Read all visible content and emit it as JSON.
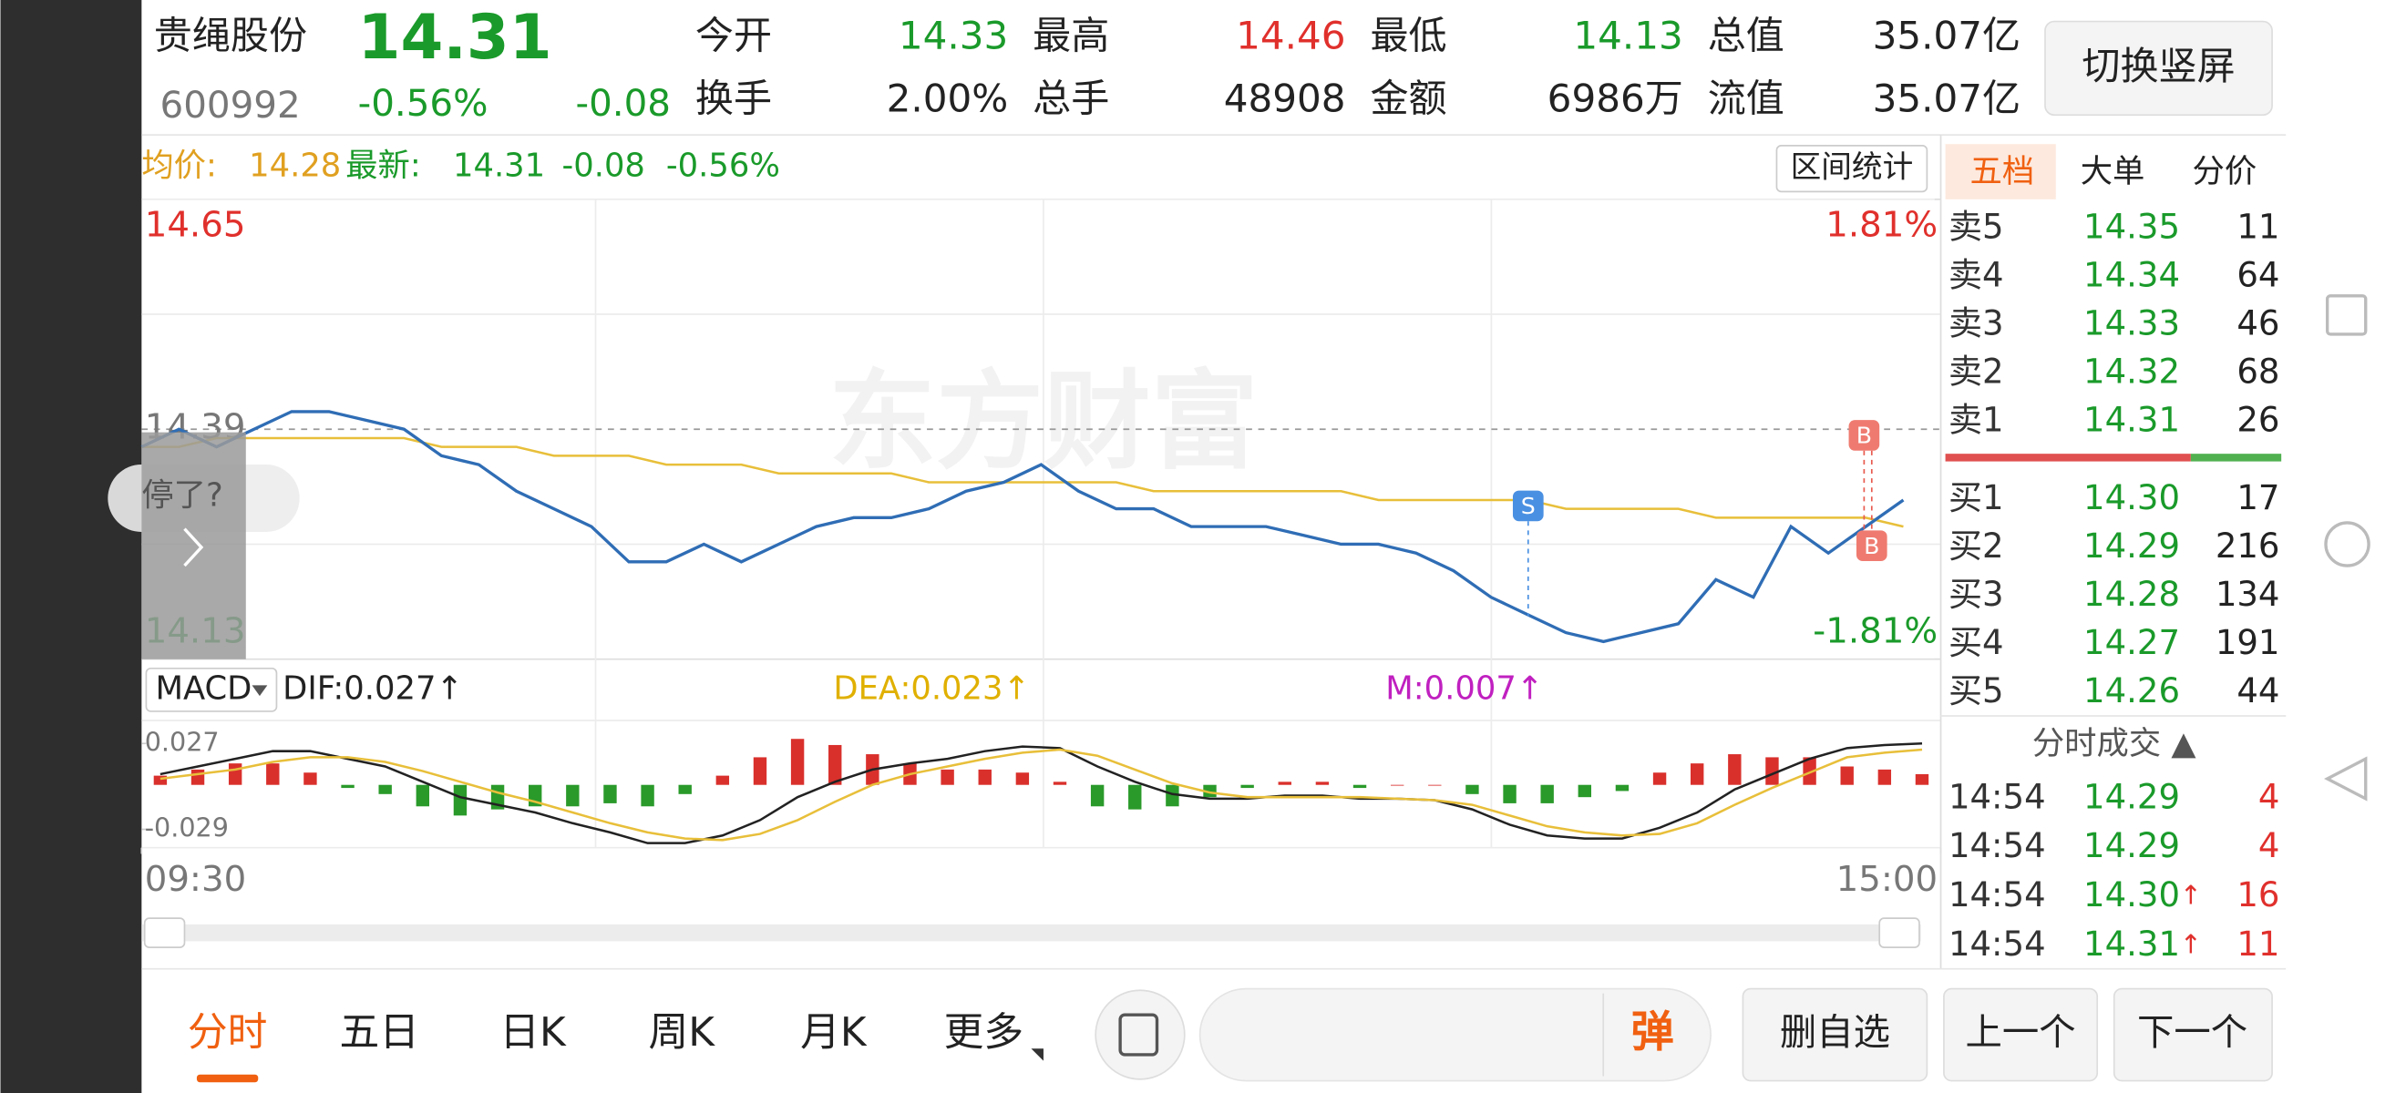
{
  "header": {
    "name": "贵绳股份",
    "price": "14.31",
    "code": "600992",
    "change_pct": "-0.56%",
    "change": "-0.08",
    "stats": [
      [
        "今开",
        "14.33"
      ],
      [
        "最高",
        "14.46"
      ],
      [
        "最低",
        "14.13"
      ],
      [
        "总值",
        "35.07亿"
      ],
      [
        "换手",
        "2.00%"
      ],
      [
        "总手",
        "48908"
      ],
      [
        "金额",
        "6986万"
      ],
      [
        "流值",
        "35.07亿"
      ]
    ],
    "button": "切换竖屏"
  },
  "info_bar": {
    "avg_label": "均价:",
    "avg": "14.28",
    "latest_label": "最新:",
    "latest": "14.31",
    "change": "-0.08",
    "change_pct": "-0.56%",
    "button": "区间统计"
  },
  "popup": {
    "text": "停了?"
  },
  "chart_data": [
    {
      "type": "line",
      "watermark": "东方财富",
      "ylim": [
        14.13,
        14.65
      ],
      "yticks": [
        14.65,
        14.39,
        14.13
      ],
      "y2lim": [
        -1.81,
        1.81
      ],
      "y2ticks": [
        {
          "value": 1.81,
          "label": "1.81%"
        },
        {
          "value": -1.81,
          "label": "-1.81%"
        }
      ],
      "xlim": [
        0,
        48
      ],
      "xticks": [
        {
          "value": 0,
          "label": "09:30"
        },
        {
          "value": 48,
          "label": "15:00"
        }
      ],
      "series": [
        {
          "color": "#2f6db5",
          "values": [
            14.37,
            14.39,
            14.37,
            14.39,
            14.41,
            14.41,
            14.4,
            14.39,
            14.36,
            14.35,
            14.32,
            14.3,
            14.28,
            14.24,
            14.24,
            14.26,
            14.24,
            14.26,
            14.28,
            14.29,
            14.29,
            14.3,
            14.32,
            14.33,
            14.35,
            14.32,
            14.3,
            14.3,
            14.28,
            14.28,
            14.28,
            14.27,
            14.26,
            14.26,
            14.25,
            14.23,
            14.2,
            14.18,
            14.16,
            14.15,
            14.16,
            14.17,
            14.22,
            14.2,
            14.28,
            14.25,
            14.28,
            14.31
          ]
        },
        {
          "color": "#e8bf3a",
          "values": [
            14.37,
            14.37,
            14.38,
            14.38,
            14.38,
            14.38,
            14.38,
            14.38,
            14.37,
            14.37,
            14.37,
            14.36,
            14.36,
            14.36,
            14.35,
            14.35,
            14.35,
            14.34,
            14.34,
            14.34,
            14.34,
            14.33,
            14.33,
            14.33,
            14.33,
            14.33,
            14.33,
            14.32,
            14.32,
            14.32,
            14.32,
            14.32,
            14.32,
            14.31,
            14.31,
            14.31,
            14.31,
            14.31,
            14.3,
            14.3,
            14.3,
            14.3,
            14.29,
            14.29,
            14.29,
            14.29,
            14.29,
            14.28
          ]
        }
      ],
      "annotations": [
        {
          "text": "S"
        },
        {
          "text": "B"
        },
        {
          "text": "B"
        }
      ]
    },
    {
      "type": "macd",
      "selector": "MACD",
      "dif_label": "DIF:0.027↑",
      "dea_label": "DEA:0.023↑",
      "m_label": "M:0.007↑",
      "ylim": [
        -0.041,
        0.042
      ],
      "yticks": [
        0.027,
        -0.029
      ],
      "xlim": [
        0,
        48
      ],
      "series": [
        {
          "name": "DIF",
          "color": "#222222",
          "values": [
            0.007,
            0.012,
            0.017,
            0.022,
            0.022,
            0.017,
            0.012,
            0.002,
            -0.008,
            -0.013,
            -0.018,
            -0.025,
            -0.031,
            -0.038,
            -0.038,
            -0.033,
            -0.023,
            -0.008,
            0.002,
            0.01,
            0.014,
            0.017,
            0.022,
            0.025,
            0.024,
            0.012,
            0.002,
            -0.006,
            -0.009,
            -0.009,
            -0.007,
            -0.007,
            -0.009,
            -0.009,
            -0.01,
            -0.016,
            -0.026,
            -0.033,
            -0.035,
            -0.035,
            -0.028,
            -0.018,
            -0.003,
            0.007,
            0.017,
            0.024,
            0.026,
            0.027
          ]
        },
        {
          "name": "DEA",
          "color": "#e8bf3a",
          "values": [
            0.004,
            0.007,
            0.01,
            0.015,
            0.018,
            0.018,
            0.015,
            0.009,
            0.002,
            -0.005,
            -0.011,
            -0.018,
            -0.025,
            -0.031,
            -0.035,
            -0.036,
            -0.032,
            -0.023,
            -0.011,
            0.0,
            0.007,
            0.012,
            0.017,
            0.021,
            0.023,
            0.019,
            0.01,
            0.001,
            -0.005,
            -0.008,
            -0.008,
            -0.008,
            -0.008,
            -0.009,
            -0.01,
            -0.013,
            -0.02,
            -0.027,
            -0.031,
            -0.033,
            -0.032,
            -0.025,
            -0.013,
            -0.002,
            0.008,
            0.018,
            0.021,
            0.023
          ]
        }
      ],
      "histogram": {
        "up_color": "#d9302c",
        "down_color": "#2a9a2a",
        "values": [
          0.006,
          0.01,
          0.014,
          0.014,
          0.008,
          -0.002,
          -0.006,
          -0.014,
          -0.02,
          -0.016,
          -0.014,
          -0.014,
          -0.012,
          -0.014,
          -0.006,
          0.006,
          0.018,
          0.03,
          0.026,
          0.02,
          0.014,
          0.01,
          0.01,
          0.008,
          0.002,
          -0.014,
          -0.016,
          -0.014,
          -0.008,
          -0.002,
          0.002,
          0.002,
          -0.002,
          0.0,
          0.0,
          -0.006,
          -0.012,
          -0.012,
          -0.008,
          -0.004,
          0.008,
          0.014,
          0.02,
          0.018,
          0.018,
          0.012,
          0.01,
          0.007
        ]
      }
    }
  ],
  "panel": {
    "tabs": [
      "五档",
      "大单",
      "分价"
    ],
    "asks": [
      [
        "卖5",
        "14.35",
        "11"
      ],
      [
        "卖4",
        "14.34",
        "64"
      ],
      [
        "卖3",
        "14.33",
        "46"
      ],
      [
        "卖2",
        "14.32",
        "68"
      ],
      [
        "卖1",
        "14.31",
        "26"
      ]
    ],
    "bids": [
      [
        "买1",
        "14.30",
        "17"
      ],
      [
        "买2",
        "14.29",
        "216"
      ],
      [
        "买3",
        "14.28",
        "134"
      ],
      [
        "买4",
        "14.27",
        "191"
      ],
      [
        "买5",
        "14.26",
        "44"
      ]
    ],
    "trades_title": "分时成交 ▲",
    "trades": [
      [
        "14:54",
        "14.29",
        "4"
      ],
      [
        "14:54",
        "14.29",
        "4"
      ],
      [
        "14:54",
        "14.30↑",
        "16"
      ],
      [
        "14:54",
        "14.31↑",
        "11"
      ]
    ]
  },
  "bottom": {
    "tabs": [
      "分时",
      "五日",
      "日K",
      "周K",
      "月K",
      "更多"
    ],
    "danmaku": "弹",
    "buttons": [
      "删自选",
      "上一个",
      "下一个"
    ]
  }
}
